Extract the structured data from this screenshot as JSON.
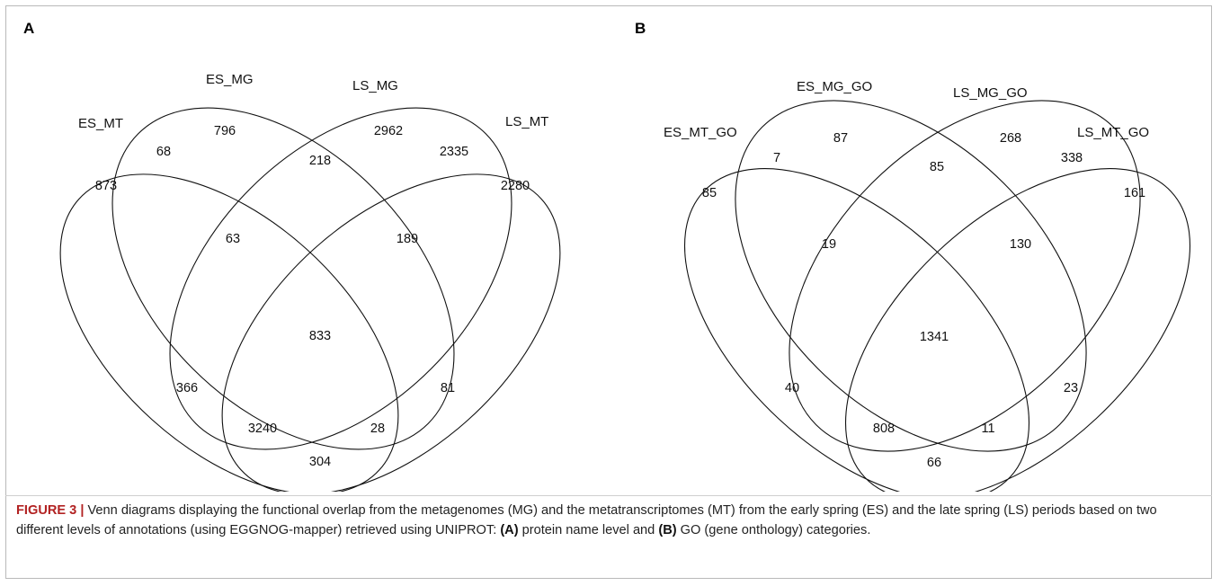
{
  "figure": {
    "label": "FIGURE 3 |",
    "caption": {
      "part1": " Venn diagrams displaying the functional overlap from the metagenomes (MG) and the metatranscriptomes (MT) from the early spring (ES) and the late spring (LS) periods based on two different levels of annotations (using EGGNOG-mapper) retrieved using UNIPROT: ",
      "a_marker": "(A)",
      "part2": " protein name level and ",
      "b_marker": "(B)",
      "part3": " GO (gene onthology) categories."
    }
  },
  "panels": [
    {
      "letter": "A",
      "sets": [
        "ES_MT",
        "ES_MG",
        "LS_MG",
        "LS_MT"
      ],
      "regions": {
        "ES_MT_only": "873",
        "ES_MG_only": "796",
        "LS_MG_only": "2962",
        "LS_MT_only": "2280",
        "ES_MT__ES_MG": "68",
        "ES_MG__LS_MG": "218",
        "LS_MG__LS_MT": "2335",
        "ES_MT__ES_MG__LS_MG": "63",
        "ES_MG__LS_MG__LS_MT": "189",
        "all_four": "833",
        "ES_MT__LS_MG": "366",
        "ES_MG__LS_MT": "81",
        "ES_MT__LS_MG__LS_MT": "3240",
        "ES_MT__ES_MG__LS_MT": "28",
        "ES_MT__LS_MT": "304"
      }
    },
    {
      "letter": "B",
      "sets": [
        "ES_MT_GO",
        "ES_MG_GO",
        "LS_MG_GO",
        "LS_MT_GO"
      ],
      "regions": {
        "ES_MT_only": "85",
        "ES_MG_only": "87",
        "LS_MG_only": "268",
        "LS_MT_only": "161",
        "ES_MT__ES_MG": "7",
        "ES_MG__LS_MG": "85",
        "LS_MG__LS_MT": "338",
        "ES_MT__ES_MG__LS_MG": "19",
        "ES_MG__LS_MG__LS_MT": "130",
        "all_four": "1341",
        "ES_MT__LS_MG": "40",
        "ES_MG__LS_MT": "23",
        "ES_MT__LS_MG__LS_MT": "808",
        "ES_MT__ES_MG__LS_MT": "11",
        "ES_MT__LS_MT": "66"
      }
    }
  ]
}
